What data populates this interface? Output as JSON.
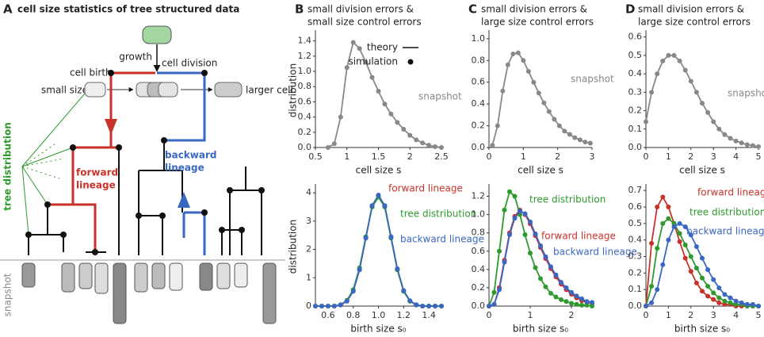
{
  "diagram": {
    "panel": "A",
    "title": "cell size statistics of tree structured data",
    "growth": "growth",
    "cell_division": "cell division",
    "cell_birth": "cell birth",
    "small_size": "small size",
    "larger_cell": "larger cell",
    "tree_distribution": "tree distribution",
    "forward_lineage": [
      "forward",
      "lineage"
    ],
    "backward_lineage": [
      "backward",
      "lineage"
    ],
    "snapshot": "snapshot"
  },
  "chart_data": [
    {
      "type": "line",
      "panel": "B",
      "title": [
        "small division errors &",
        "small size control errors"
      ],
      "legend": [
        "theory",
        "simulation"
      ],
      "xlabel": "cell size s",
      "ylabel": "distribution",
      "x": [
        0.7,
        0.8,
        0.9,
        1.0,
        1.1,
        1.2,
        1.3,
        1.4,
        1.5,
        1.6,
        1.7,
        1.8,
        1.9,
        2.0,
        2.1,
        2.2,
        2.3,
        2.4,
        2.5
      ],
      "series": [
        {
          "name": "snapshot",
          "color": "#888888",
          "values": [
            0,
            0.05,
            0.4,
            1.05,
            1.38,
            1.3,
            1.12,
            0.92,
            0.74,
            0.57,
            0.44,
            0.33,
            0.24,
            0.16,
            0.1,
            0.06,
            0.03,
            0.01,
            0
          ]
        }
      ],
      "xlim": [
        0.5,
        2.5
      ],
      "xticks": [
        0.5,
        1,
        1.5,
        2,
        2.5
      ],
      "ylim": [
        0,
        1.5
      ],
      "yticks": [
        {
          "value": 0,
          "label": "0.0"
        },
        0.2,
        0.4,
        0.6,
        0.8,
        {
          "value": 1,
          "label": "1.0"
        },
        1.2,
        1.4
      ]
    },
    {
      "type": "line",
      "xlabel": "birth size s₀",
      "ylabel": "distribution",
      "x": [
        0.5,
        0.55,
        0.6,
        0.65,
        0.7,
        0.75,
        0.8,
        0.85,
        0.9,
        0.95,
        1.0,
        1.05,
        1.1,
        1.15,
        1.2,
        1.25,
        1.3,
        1.35,
        1.4,
        1.45,
        1.5
      ],
      "series": [
        {
          "name": "forward lineage",
          "color": "#c8322a",
          "values": [
            0,
            0,
            0,
            0,
            0.04,
            0.18,
            0.54,
            1.3,
            2.42,
            3.52,
            3.9,
            3.52,
            2.42,
            1.3,
            0.54,
            0.18,
            0.04,
            0,
            0,
            0,
            0
          ]
        },
        {
          "name": "tree distribution",
          "color": "#2e9a2e",
          "values": [
            0,
            0,
            0,
            0,
            0.05,
            0.2,
            0.58,
            1.35,
            2.45,
            3.5,
            3.85,
            3.5,
            2.4,
            1.28,
            0.52,
            0.17,
            0.04,
            0,
            0,
            0,
            0
          ]
        },
        {
          "name": "backward lineage",
          "color": "#3a66c4",
          "values": [
            0,
            0,
            0,
            0,
            0.04,
            0.17,
            0.52,
            1.28,
            2.4,
            3.55,
            3.92,
            3.55,
            2.45,
            1.32,
            0.55,
            0.19,
            0.05,
            0,
            0,
            0,
            0
          ]
        }
      ],
      "xlim": [
        0.5,
        1.5
      ],
      "xticks": [
        0.6,
        0.8,
        {
          "value": 1,
          "label": "1.0"
        },
        1.2,
        1.4
      ],
      "ylim": [
        0,
        4.2
      ],
      "yticks": [
        0,
        1,
        2,
        3,
        4
      ]
    },
    {
      "type": "line",
      "panel": "C",
      "title": [
        "small division errors &",
        "large size control errors"
      ],
      "xlabel": "cell size s",
      "x": [
        0.1,
        0.25,
        0.4,
        0.55,
        0.7,
        0.85,
        1.0,
        1.15,
        1.3,
        1.45,
        1.6,
        1.75,
        1.9,
        2.05,
        2.2,
        2.35,
        2.5,
        2.65,
        2.8,
        2.95
      ],
      "series": [
        {
          "name": "snapshot",
          "color": "#888888",
          "values": [
            0.02,
            0.2,
            0.52,
            0.76,
            0.86,
            0.87,
            0.8,
            0.7,
            0.6,
            0.5,
            0.41,
            0.33,
            0.26,
            0.2,
            0.15,
            0.12,
            0.09,
            0.07,
            0.05,
            0.04
          ]
        }
      ],
      "xlim": [
        0,
        3
      ],
      "xticks": [
        0,
        1,
        2,
        3
      ],
      "ylim": [
        0,
        1.05
      ],
      "yticks": [
        {
          "value": 0,
          "label": "0.0"
        },
        0.2,
        0.4,
        0.6,
        0.8,
        {
          "value": 1,
          "label": "1.0"
        }
      ]
    },
    {
      "type": "line",
      "xlabel": "birth size s₀",
      "x": [
        0,
        0.125,
        0.25,
        0.375,
        0.5,
        0.625,
        0.75,
        0.875,
        1.0,
        1.125,
        1.25,
        1.375,
        1.5,
        1.625,
        1.75,
        1.875,
        2.0,
        2.125,
        2.25,
        2.375,
        2.5
      ],
      "series": [
        {
          "name": "forward lineage",
          "color": "#c8322a",
          "values": [
            0,
            0.02,
            0.2,
            0.5,
            0.8,
            0.98,
            1.05,
            1.0,
            0.9,
            0.77,
            0.64,
            0.52,
            0.41,
            0.32,
            0.24,
            0.18,
            0.13,
            0.09,
            0.06,
            0.04,
            0.03
          ]
        },
        {
          "name": "tree distribution",
          "color": "#2e9a2e",
          "values": [
            0,
            0.15,
            0.6,
            1.05,
            1.25,
            1.2,
            1.0,
            0.78,
            0.58,
            0.42,
            0.3,
            0.21,
            0.14,
            0.1,
            0.07,
            0.05,
            0.03,
            0.02,
            0.01,
            0.01,
            0
          ]
        },
        {
          "name": "backward lineage",
          "color": "#3a66c4",
          "values": [
            0,
            0.02,
            0.18,
            0.48,
            0.78,
            0.96,
            1.04,
            1.01,
            0.92,
            0.79,
            0.66,
            0.54,
            0.43,
            0.34,
            0.26,
            0.2,
            0.15,
            0.11,
            0.08,
            0.05,
            0.04
          ]
        }
      ],
      "xlim": [
        0,
        2.5
      ],
      "xticks": [
        0,
        1,
        2
      ],
      "ylim": [
        0,
        1.3
      ],
      "yticks": [
        {
          "value": 0,
          "label": "0.0"
        },
        0.2,
        0.4,
        0.6,
        0.8,
        {
          "value": 1,
          "label": "1.0"
        },
        1.2
      ]
    },
    {
      "type": "line",
      "panel": "D",
      "title": [
        "small division errors &",
        "large size control errors"
      ],
      "xlabel": "cell size s",
      "x": [
        0,
        0.25,
        0.5,
        0.75,
        1.0,
        1.25,
        1.5,
        1.75,
        2.0,
        2.25,
        2.5,
        2.75,
        3.0,
        3.25,
        3.5,
        3.75,
        4.0,
        4.25,
        4.5,
        4.75,
        5.0
      ],
      "series": [
        {
          "name": "snapshot",
          "color": "#888888",
          "values": [
            0.14,
            0.3,
            0.4,
            0.47,
            0.5,
            0.5,
            0.47,
            0.42,
            0.36,
            0.3,
            0.24,
            0.19,
            0.14,
            0.1,
            0.07,
            0.05,
            0.035,
            0.025,
            0.015,
            0.01,
            0.005
          ]
        }
      ],
      "xlim": [
        0,
        5
      ],
      "xticks": [
        0,
        1,
        2,
        3,
        4,
        5
      ],
      "ylim": [
        0,
        0.62
      ],
      "yticks": [
        {
          "value": 0,
          "label": "0.0"
        },
        0.1,
        0.2,
        0.3,
        0.4,
        0.5,
        0.6
      ]
    },
    {
      "type": "line",
      "xlabel": "birth size s₀",
      "x": [
        0,
        0.25,
        0.5,
        0.75,
        1.0,
        1.25,
        1.5,
        1.75,
        2.0,
        2.25,
        2.5,
        2.75,
        3.0,
        3.25,
        3.5,
        3.75,
        4.0,
        4.25,
        4.5,
        4.75,
        5.0
      ],
      "series": [
        {
          "name": "forward lineage",
          "color": "#c8322a",
          "values": [
            0,
            0.38,
            0.6,
            0.66,
            0.6,
            0.5,
            0.39,
            0.29,
            0.21,
            0.14,
            0.09,
            0.06,
            0.04,
            0.02,
            0.01,
            0.01,
            0,
            0,
            0,
            0,
            0
          ]
        },
        {
          "name": "tree distribution",
          "color": "#2e9a2e",
          "values": [
            0,
            0.12,
            0.35,
            0.5,
            0.53,
            0.5,
            0.44,
            0.37,
            0.3,
            0.23,
            0.17,
            0.12,
            0.08,
            0.05,
            0.03,
            0.02,
            0.01,
            0.01,
            0,
            0,
            0
          ]
        },
        {
          "name": "backward lineage",
          "color": "#3a66c4",
          "values": [
            0,
            0.02,
            0.1,
            0.25,
            0.4,
            0.48,
            0.5,
            0.48,
            0.43,
            0.36,
            0.29,
            0.22,
            0.16,
            0.11,
            0.07,
            0.05,
            0.03,
            0.02,
            0.01,
            0.01,
            0
          ]
        }
      ],
      "xlim": [
        0,
        5
      ],
      "xticks": [
        0,
        1,
        2,
        3,
        4,
        5
      ],
      "ylim": [
        0,
        0.72
      ],
      "yticks": [
        {
          "value": 0,
          "label": "0.0"
        },
        0.1,
        0.2,
        0.3,
        0.4,
        0.5,
        0.6,
        0.7
      ]
    }
  ]
}
